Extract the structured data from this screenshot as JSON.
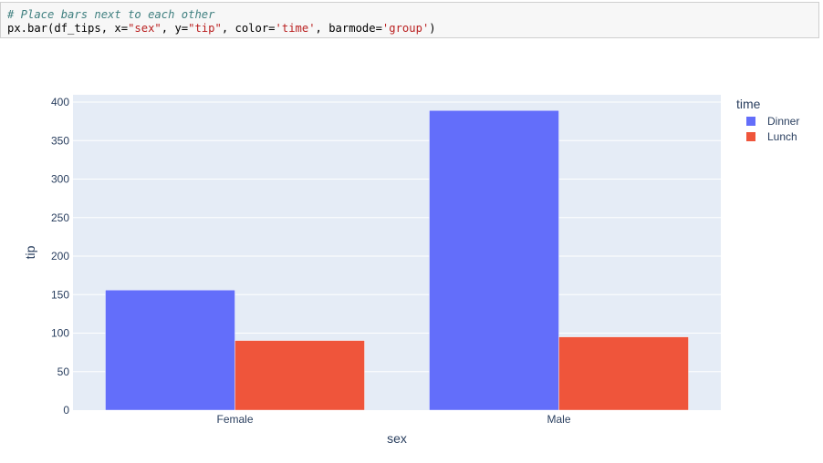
{
  "code": {
    "comment": "# Place bars next to each other",
    "call_prefix": "px.bar(df_tips, x=",
    "arg_x": "\"sex\"",
    "sep_y": ", y=",
    "arg_y": "\"tip\"",
    "sep_color": ", color=",
    "arg_color": "'time'",
    "sep_barmode": ", barmode=",
    "arg_barmode": "'group'",
    "call_suffix": ")"
  },
  "colors": {
    "plot_bg": "#e5ecf6",
    "grid": "#ffffff",
    "text": "#2a3f5f"
  },
  "chart_data": {
    "type": "bar",
    "barmode": "group",
    "xlabel": "sex",
    "ylabel": "tip",
    "categories": [
      "Female",
      "Male"
    ],
    "ylim": [
      0,
      400
    ],
    "yticks": [
      0,
      50,
      100,
      150,
      200,
      250,
      300,
      350,
      400
    ],
    "grid": true,
    "legend": {
      "title": "time",
      "placement": "top-right"
    },
    "series": [
      {
        "name": "Dinner",
        "color": "#636efa",
        "values": [
          155.9,
          389.1
        ]
      },
      {
        "name": "Lunch",
        "color": "#ef553b",
        "values": [
          90.4,
          95.1
        ]
      }
    ]
  }
}
